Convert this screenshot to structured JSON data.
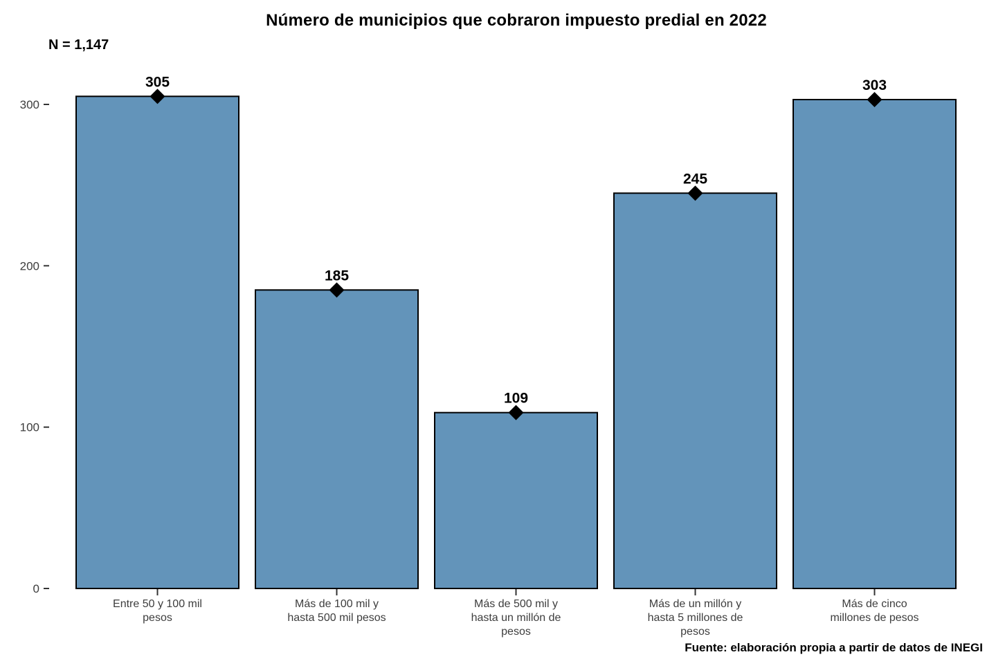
{
  "page": {
    "background": "#ffffff"
  },
  "chart_data": {
    "type": "bar",
    "title": "Número de municipios que cobraron impuesto predial en 2022",
    "annotation": "N = 1,147",
    "source": "Fuente: elaboración propia a partir de datos de INEGI",
    "categories": [
      "Entre 50 y 100 mil pesos",
      "Más de 100 mil y hasta 500 mil pesos",
      "Más de 500 mil y hasta un millón de pesos",
      "Más de un millón y hasta 5 millones de pesos",
      "Más de cinco millones de pesos"
    ],
    "category_lines": [
      [
        "Entre 50 y 100 mil",
        "pesos"
      ],
      [
        "Más de 100 mil y",
        "hasta 500 mil pesos"
      ],
      [
        "Más de 500 mil y",
        "hasta un millón de",
        "pesos"
      ],
      [
        "Más de un millón y",
        "hasta 5 millones de",
        "pesos"
      ],
      [
        "Más de cinco",
        "millones de pesos"
      ]
    ],
    "values": [
      305,
      185,
      109,
      245,
      303
    ],
    "value_labels": [
      "305",
      "185",
      "109",
      "245",
      "303"
    ],
    "xlabel": "",
    "ylabel": "",
    "yticks": [
      0,
      100,
      200,
      300
    ],
    "ylim": [
      0,
      320
    ],
    "grid": false,
    "legend": false,
    "marker": "diamond",
    "colors": {
      "bar_fill": "#6394ba",
      "bar_stroke": "#000000",
      "marker_fill": "#000000",
      "axis_text": "#3d3d3d",
      "tick_stroke": "#333333",
      "value_text": "#000000"
    }
  }
}
